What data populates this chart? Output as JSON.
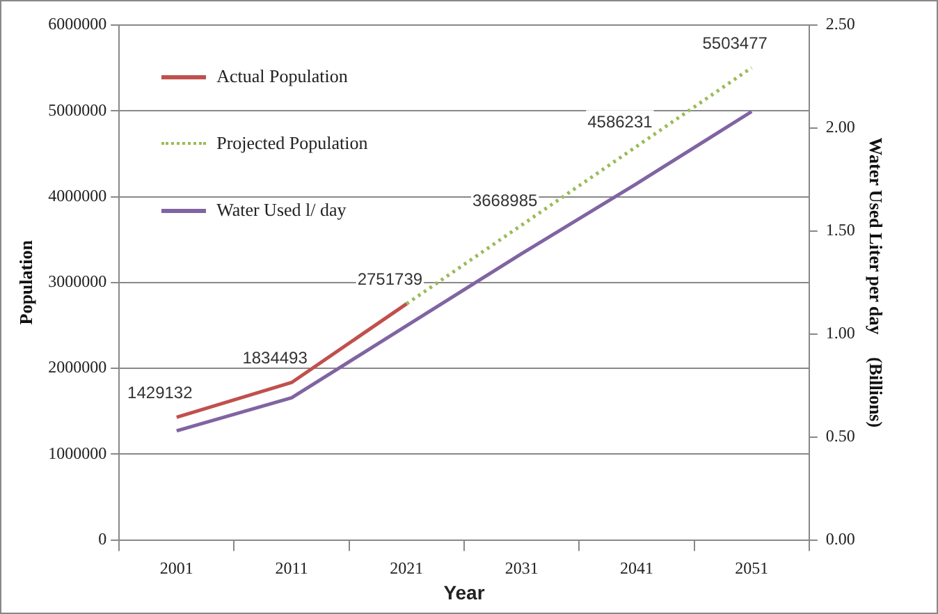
{
  "chart_data": {
    "type": "line",
    "xlabel": "Year",
    "ylabel": "Population",
    "y2label": "Water Used Liter per day     (Billions)",
    "categories": [
      "2001",
      "2011",
      "2021",
      "2031",
      "2041",
      "2051"
    ],
    "series": [
      {
        "name": "Actual Population",
        "color": "#c0504d",
        "values": [
          1429132,
          1834493,
          2751739,
          null,
          null,
          null
        ],
        "value_labels": [
          "1429132",
          "1834493",
          "2751739",
          null,
          null,
          null
        ]
      },
      {
        "name": "Projected Population",
        "color": "#9bbb59",
        "line_style": "dotted",
        "values": [
          null,
          null,
          2751739,
          3668985,
          4586231,
          5503477
        ],
        "value_labels": [
          null,
          null,
          null,
          "3668985",
          "4586231",
          "5503477"
        ]
      },
      {
        "name": "Water Used l/ day",
        "color": "#8064a2",
        "axis": "y2",
        "values": [
          0.53,
          0.69,
          1.04,
          1.39,
          1.73,
          2.08
        ]
      }
    ],
    "ylim": [
      0,
      6000000
    ],
    "yticks": [
      0,
      1000000,
      2000000,
      3000000,
      4000000,
      5000000,
      6000000
    ],
    "y2lim": [
      0,
      2.5
    ],
    "y2ticks": [
      {
        "value": 0,
        "label": "0.00"
      },
      {
        "value": 0.5,
        "label": "0.50"
      },
      {
        "value": 1,
        "label": "1.00"
      },
      {
        "value": 1.5,
        "label": "1.50"
      },
      {
        "value": 2,
        "label": "2.00"
      },
      {
        "value": 2.5,
        "label": "2.50"
      }
    ],
    "grid": "y",
    "legend": "top left",
    "marker": "none"
  }
}
